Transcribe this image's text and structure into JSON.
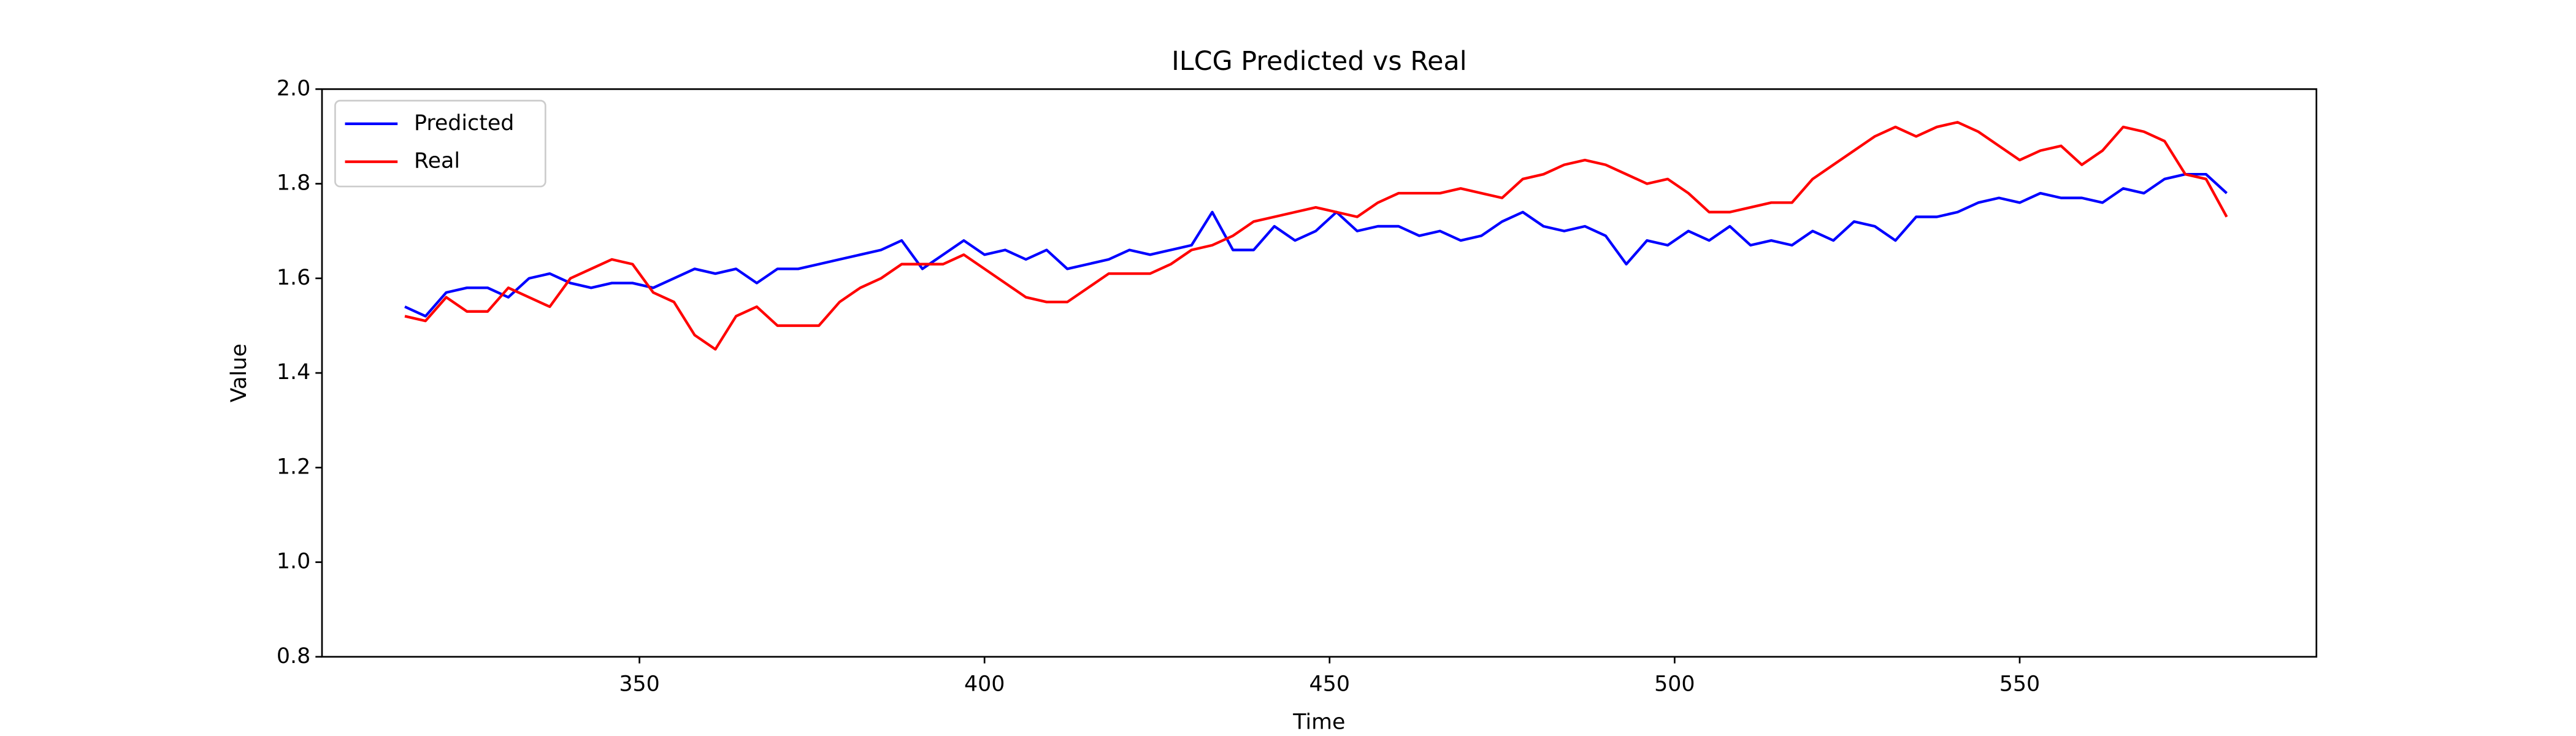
{
  "chart_data": {
    "type": "line",
    "title": "ILCG Predicted vs Real",
    "xlabel": "Time",
    "ylabel": "Value",
    "x": [
      316,
      319,
      322,
      325,
      328,
      331,
      334,
      337,
      340,
      343,
      346,
      349,
      352,
      355,
      358,
      361,
      364,
      367,
      370,
      373,
      376,
      379,
      382,
      385,
      388,
      391,
      394,
      397,
      400,
      403,
      406,
      409,
      412,
      415,
      418,
      421,
      424,
      427,
      430,
      433,
      436,
      439,
      442,
      445,
      448,
      451,
      454,
      457,
      460,
      463,
      466,
      469,
      472,
      475,
      478,
      481,
      484,
      487,
      490,
      493,
      496,
      499,
      502,
      505,
      508,
      511,
      514,
      517,
      520,
      523,
      526,
      529,
      532,
      535,
      538,
      541,
      544,
      547,
      550,
      553,
      556,
      559,
      562,
      565,
      568,
      571,
      574,
      577,
      580
    ],
    "series": [
      {
        "name": "Predicted",
        "color": "#0000ff",
        "values": [
          1.54,
          1.52,
          1.57,
          1.58,
          1.58,
          1.56,
          1.6,
          1.61,
          1.59,
          1.58,
          1.59,
          1.59,
          1.58,
          1.6,
          1.62,
          1.61,
          1.62,
          1.59,
          1.62,
          1.62,
          1.63,
          1.64,
          1.65,
          1.66,
          1.68,
          1.62,
          1.65,
          1.68,
          1.65,
          1.66,
          1.64,
          1.66,
          1.62,
          1.63,
          1.64,
          1.66,
          1.65,
          1.66,
          1.67,
          1.74,
          1.66,
          1.66,
          1.71,
          1.68,
          1.7,
          1.74,
          1.7,
          1.71,
          1.71,
          1.69,
          1.7,
          1.68,
          1.69,
          1.72,
          1.74,
          1.71,
          1.7,
          1.71,
          1.69,
          1.63,
          1.68,
          1.67,
          1.7,
          1.68,
          1.71,
          1.67,
          1.68,
          1.67,
          1.7,
          1.68,
          1.72,
          1.71,
          1.68,
          1.73,
          1.73,
          1.74,
          1.76,
          1.77,
          1.76,
          1.78,
          1.77,
          1.77,
          1.76,
          1.79,
          1.78,
          1.81,
          1.82,
          1.82,
          1.78
        ]
      },
      {
        "name": "Real",
        "color": "#ff0000",
        "values": [
          1.52,
          1.51,
          1.56,
          1.53,
          1.53,
          1.58,
          1.56,
          1.54,
          1.6,
          1.62,
          1.64,
          1.63,
          1.57,
          1.55,
          1.48,
          1.45,
          1.52,
          1.54,
          1.5,
          1.5,
          1.5,
          1.55,
          1.58,
          1.6,
          1.63,
          1.63,
          1.63,
          1.65,
          1.62,
          1.59,
          1.56,
          1.55,
          1.55,
          1.58,
          1.61,
          1.61,
          1.61,
          1.63,
          1.66,
          1.67,
          1.69,
          1.72,
          1.73,
          1.74,
          1.75,
          1.74,
          1.73,
          1.76,
          1.78,
          1.78,
          1.78,
          1.79,
          1.78,
          1.77,
          1.81,
          1.82,
          1.84,
          1.85,
          1.84,
          1.82,
          1.8,
          1.81,
          1.78,
          1.74,
          1.74,
          1.75,
          1.76,
          1.76,
          1.81,
          1.84,
          1.87,
          1.9,
          1.92,
          1.9,
          1.92,
          1.93,
          1.91,
          1.88,
          1.85,
          1.87,
          1.88,
          1.84,
          1.87,
          1.92,
          1.91,
          1.89,
          1.82,
          1.81,
          1.73
        ]
      }
    ],
    "xlim": [
      304,
      593
    ],
    "xticks": [
      350,
      400,
      450,
      500,
      550
    ],
    "ylim": [
      0.8,
      2.0
    ],
    "yticks": [
      0.8,
      {
        "value": 1.0,
        "label": "1.0"
      },
      1.2,
      1.4,
      1.6,
      1.8,
      {
        "value": 2.0,
        "label": "2.0"
      }
    ],
    "legend": "upper left",
    "grid": false
  }
}
